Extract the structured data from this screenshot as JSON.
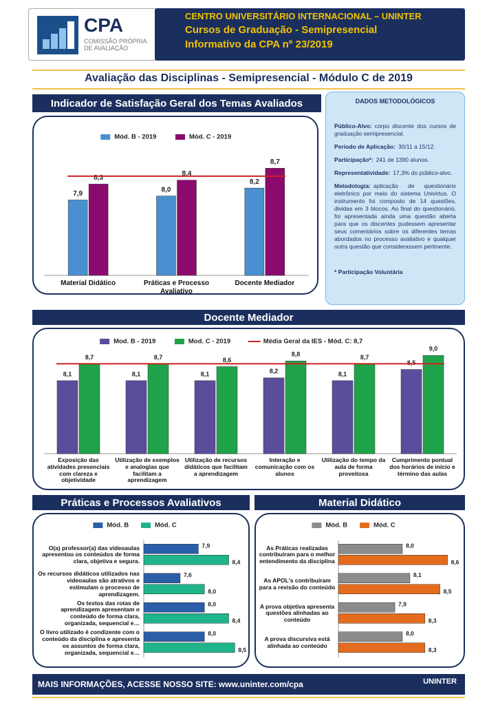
{
  "header": {
    "logo_title": "CPA",
    "logo_subtitle": "COMISSÃO PRÓPRIA DE AVALIAÇÃO",
    "lines": [
      "CENTRO UNIVERSITÁRIO INTERNACIONAL – UNINTER",
      "Cursos de Graduação - Semipresencial",
      "Informativo da CPA nº 23/2019"
    ]
  },
  "page_title": "Avaliação das Disciplinas - Semipresencial - Módulo C de 2019",
  "methodology": {
    "title": "DADOS METODOLÓGICOS",
    "items": [
      {
        "label": "Público-Alvo:",
        "text": "corpo discente dos cursos de graduação semipresencial."
      },
      {
        "label": "Período de Aplicação:",
        "text": "30/11 a 15/12."
      },
      {
        "label": "Participação*:",
        "text": "241 de 1390 alunos."
      },
      {
        "label": "Representatividade:",
        "text": "17,3% do público-alvo."
      },
      {
        "label": "Metodologia:",
        "text": "aplicação de questionário eletrônico por meio do sistema Univirtus. O instrumento foi composto de 14 questões, dividas em 3 blocos. Ao final do questionário, foi apresentada ainda uma questão aberta para que os discentes pudessem apresentar seus comentários sobre os diferentes temas abordados no processo avaliativo e qualquer outra questão que considerassem pertinente."
      }
    ],
    "note": "* Participação Voluntária"
  },
  "chart_data": [
    {
      "type": "bar",
      "title": "Indicador de Satisfação Geral dos Temas Avaliados",
      "categories": [
        "Material Didático",
        "Práticas e Processo Avaliativo",
        "Docente Mediador"
      ],
      "series": [
        {
          "name": "Mód. B - 2019",
          "color": "#4a8fd0",
          "values": [
            7.9,
            8.0,
            8.2
          ],
          "value_labels": [
            "7,9",
            "8,0",
            "8,2"
          ]
        },
        {
          "name": "Mód. C - 2019",
          "color": "#8b0a6e",
          "values": [
            8.3,
            8.4,
            8.7
          ],
          "value_labels": [
            "8,3",
            "8,4",
            "8,7"
          ]
        }
      ],
      "reference_value": 8.5,
      "reference_color": "#d02020",
      "ylim": [
        6,
        9
      ]
    },
    {
      "type": "bar",
      "title": "Docente Mediador",
      "categories": [
        "Exposição das atividades presenciais com clareza e objetividade",
        "Utilização de exemplos e analogias que facilitam a aprendizagem",
        "Utilização de recursos didáticos que facilitam a aprendizagem",
        "Interação e comunicação com os alunos",
        "Utilização do tempo da aula de forma proveitosa",
        "Cumprimento pontual dos horários de início e término das aulas"
      ],
      "series": [
        {
          "name": "Mod. B - 2019",
          "color": "#5b4d9c",
          "values": [
            8.1,
            8.1,
            8.1,
            8.2,
            8.1,
            8.5
          ],
          "value_labels": [
            "8,1",
            "8,1",
            "8,1",
            "8,2",
            "8,1",
            "8,5"
          ]
        },
        {
          "name": "Mod. C - 2019",
          "color": "#1fa34a",
          "values": [
            8.7,
            8.7,
            8.6,
            8.8,
            8.7,
            9.0
          ],
          "value_labels": [
            "8,7",
            "8,7",
            "8,6",
            "8,8",
            "8,7",
            "9,0"
          ]
        }
      ],
      "reference_name": "Média Geral da IES - Mód. C: 8,7",
      "reference_value": 8.7,
      "reference_color": "#d02020",
      "ylim": [
        5.5,
        9.2
      ]
    },
    {
      "type": "hbar",
      "title": "Práticas e Processos Avaliativos",
      "categories": [
        "O(a) professor(a) das videoaulas apresentou os conteúdos de forma clara, objetiva e segura.",
        "Os recursos didáticos utilizados nas videoaulas são atrativos e estimulam o processo de aprendizagem.",
        "Os textos das rotas de aprendizagem apresentam o conteúdo de forma clara, organizada, sequencial e…",
        "O livro utilizado é condizente com o conteúdo da disciplina e apresenta os assuntos de forma clara, organizada, sequencial e…"
      ],
      "series": [
        {
          "name": "Mód. B",
          "color": "#2a5ea8",
          "values": [
            7.9,
            7.6,
            8.0,
            8.0
          ],
          "value_labels": [
            "7,9",
            "7,6",
            "8,0",
            "8,0"
          ]
        },
        {
          "name": "Mód. C",
          "color": "#1fb48a",
          "values": [
            8.4,
            8.0,
            8.4,
            8.5
          ],
          "value_labels": [
            "8,4",
            "8,0",
            "8,4",
            "8,5"
          ]
        }
      ],
      "xlim": [
        7,
        8.7
      ]
    },
    {
      "type": "hbar",
      "title": "Material Didático",
      "categories": [
        "As Práticas realizadas contribuíram para o melhor entendimento da disciplina",
        "As APOL's contribuíram para a revisão do conteúdo",
        "A prova objetiva apresenta questões alinhadas ao conteúdo",
        "A prova discursiva está alinhada ao conteúdo"
      ],
      "series": [
        {
          "name": "Mód. B",
          "color": "#8c8c8c",
          "values": [
            8.0,
            8.1,
            7.9,
            8.0
          ],
          "value_labels": [
            "8,0",
            "8,1",
            "7,9",
            "8,0"
          ]
        },
        {
          "name": "Mód. C",
          "color": "#e46c1e",
          "values": [
            8.6,
            8.5,
            8.3,
            8.3
          ],
          "value_labels": [
            "8,6",
            "8,5",
            "8,3",
            "8,3"
          ]
        }
      ],
      "xlim": [
        7.15,
        8.75
      ]
    }
  ],
  "footer": {
    "text": "MAIS INFORMAÇÕES, ACESSE NOSSO SITE: www.uninter.com/cpa",
    "logo": "UNINTER"
  }
}
